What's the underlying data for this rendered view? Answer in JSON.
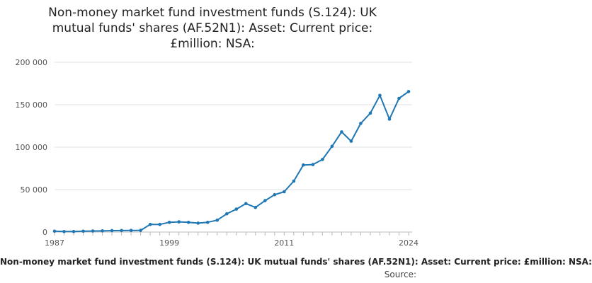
{
  "title_lines": [
    "Non-money market fund investment funds (S.124): UK",
    "mutual funds' shares (AF.52N1): Asset: Current price:",
    "£million: NSA:"
  ],
  "bottom_title": "Non-money market fund investment funds (S.124): UK mutual funds' shares (AF.52N1): Asset: Current price: £million: NSA:",
  "source_label": "Source:",
  "colors": {
    "line": "#1f77b4",
    "grid": "#e0e0e0",
    "axis": "#bbbbbb"
  },
  "chart_data": {
    "type": "line",
    "x_ticks": [
      "1987",
      "1999",
      "2011",
      "2024"
    ],
    "y_ticks": [
      "0",
      "50 000",
      "100 000",
      "150 000",
      "200 000"
    ],
    "ylim": [
      0,
      200000
    ],
    "xlim": [
      1987,
      2024
    ],
    "grid": true,
    "series": [
      {
        "x": [
          1987,
          1988,
          1989,
          1990,
          1991,
          1992,
          1993,
          1994,
          1995,
          1996,
          1997,
          1998,
          1999,
          2000,
          2001,
          2002,
          2003,
          2004,
          2005,
          2006,
          2007,
          2008,
          2009,
          2010,
          2011,
          2012,
          2013,
          2014,
          2015,
          2016,
          2017,
          2018,
          2019,
          2020,
          2021,
          2022,
          2023,
          2024
        ],
        "values": [
          1000,
          600,
          600,
          1000,
          1200,
          1400,
          1700,
          1800,
          1900,
          2000,
          9000,
          9000,
          11500,
          12000,
          11500,
          10500,
          11500,
          14000,
          21500,
          27000,
          33500,
          29000,
          37000,
          44000,
          47500,
          60000,
          79000,
          79500,
          85500,
          101000,
          118000,
          107000,
          128000,
          140000,
          161000,
          133000,
          157500,
          165500
        ]
      }
    ]
  }
}
